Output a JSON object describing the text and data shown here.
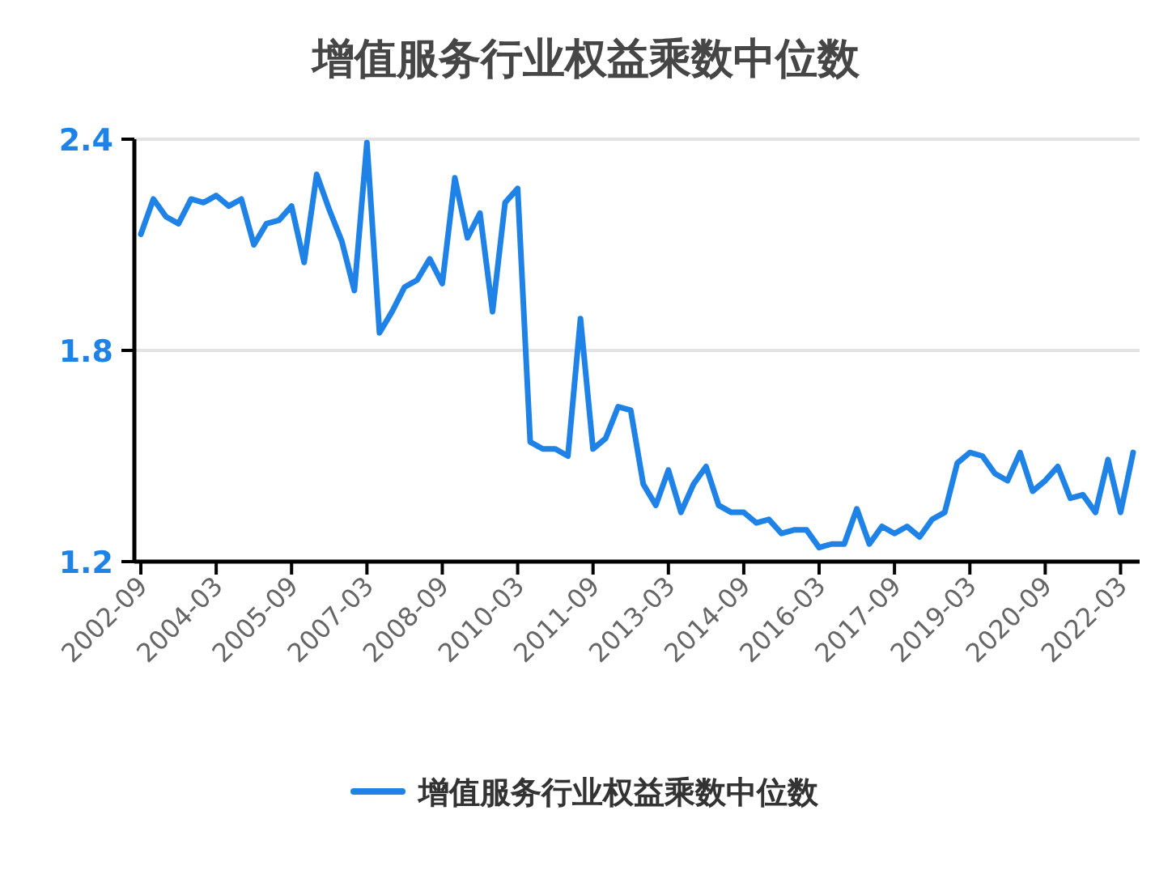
{
  "chart_data": {
    "type": "line",
    "title": "增值服务行业权益乘数中位数",
    "categories": [
      "2002-09",
      null,
      null,
      null,
      null,
      null,
      "2004-03",
      null,
      null,
      null,
      null,
      null,
      "2005-09",
      null,
      null,
      null,
      null,
      null,
      "2007-03",
      null,
      null,
      null,
      null,
      null,
      "2008-09",
      null,
      null,
      null,
      null,
      null,
      "2010-03",
      null,
      null,
      null,
      null,
      null,
      "2011-09",
      null,
      null,
      null,
      null,
      null,
      "2013-03",
      null,
      null,
      null,
      null,
      null,
      "2014-09",
      null,
      null,
      null,
      null,
      null,
      "2016-03",
      null,
      null,
      null,
      null,
      null,
      "2017-09",
      null,
      null,
      null,
      null,
      null,
      "2019-03",
      null,
      null,
      null,
      null,
      null,
      "2020-09",
      null,
      null,
      null,
      null,
      null,
      "2022-03",
      null
    ],
    "series": [
      {
        "name": "增值服务行业权益乘数中位数",
        "color": "#1e82e6",
        "values": [
          2.13,
          2.23,
          2.18,
          2.16,
          2.23,
          2.22,
          2.24,
          2.21,
          2.23,
          2.1,
          2.16,
          2.17,
          2.21,
          2.05,
          2.3,
          2.2,
          2.11,
          1.97,
          2.39,
          1.85,
          1.91,
          1.98,
          2.0,
          2.06,
          1.99,
          2.29,
          2.12,
          2.19,
          1.91,
          2.22,
          2.26,
          1.54,
          1.52,
          1.52,
          1.5,
          1.89,
          1.52,
          1.55,
          1.64,
          1.63,
          1.42,
          1.36,
          1.46,
          1.34,
          1.42,
          1.47,
          1.36,
          1.34,
          1.34,
          1.31,
          1.32,
          1.28,
          1.29,
          1.29,
          1.24,
          1.25,
          1.25,
          1.35,
          1.25,
          1.3,
          1.28,
          1.3,
          1.27,
          1.32,
          1.34,
          1.48,
          1.51,
          1.5,
          1.45,
          1.43,
          1.51,
          1.4,
          1.43,
          1.47,
          1.38,
          1.39,
          1.34,
          1.49,
          1.34,
          1.51
        ]
      }
    ],
    "ylim": [
      1.2,
      2.4
    ],
    "yticks": [
      1.2,
      1.8,
      2.4
    ],
    "grid": "y",
    "legend": "bottom"
  }
}
